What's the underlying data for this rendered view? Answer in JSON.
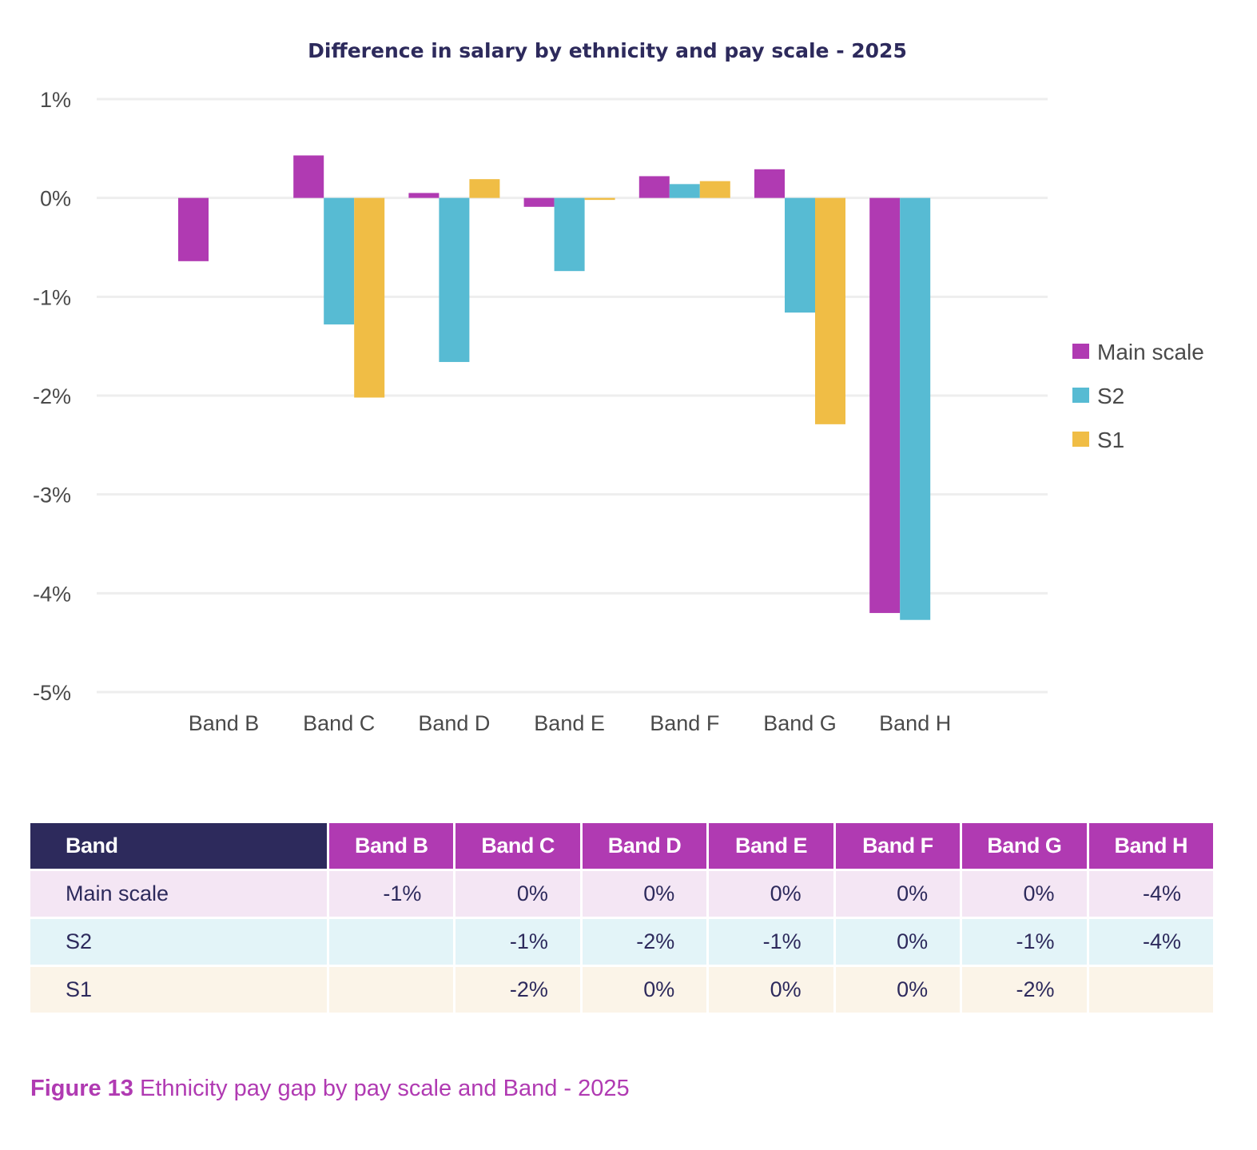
{
  "chart_data": {
    "type": "bar",
    "title": "Difference in salary by ethnicity and pay scale - 2025",
    "xlabel": "",
    "ylabel": "",
    "ylim": [
      -5,
      1
    ],
    "yticks": [
      1,
      0,
      -1,
      -2,
      -3,
      -4,
      -5
    ],
    "ytick_labels": [
      "1%",
      "0%",
      "-1%",
      "-2%",
      "-3%",
      "-4%",
      "-5%"
    ],
    "grid": true,
    "legend_position": "right",
    "categories": [
      "Band B",
      "Band C",
      "Band D",
      "Band E",
      "Band F",
      "Band G",
      "Band H"
    ],
    "series": [
      {
        "name": "Main scale",
        "color": "#b03ab2",
        "values": [
          -0.64,
          0.43,
          0.05,
          -0.09,
          0.22,
          0.29,
          -4.2
        ]
      },
      {
        "name": "S2",
        "color": "#57bbd3",
        "values": [
          null,
          -1.28,
          -1.66,
          -0.74,
          0.14,
          -1.16,
          -4.27
        ]
      },
      {
        "name": "S1",
        "color": "#f0bd45",
        "values": [
          null,
          -2.02,
          0.19,
          -0.02,
          0.17,
          -2.29,
          null
        ]
      }
    ]
  },
  "table": {
    "header_label": "Band",
    "columns": [
      "Band B",
      "Band C",
      "Band D",
      "Band E",
      "Band F",
      "Band G",
      "Band H"
    ],
    "rows": [
      {
        "label": "Main scale",
        "cells": [
          "-1%",
          "0%",
          "0%",
          "0%",
          "0%",
          "0%",
          "-4%"
        ]
      },
      {
        "label": "S2",
        "cells": [
          "",
          "-1%",
          "-2%",
          "-1%",
          "0%",
          "-1%",
          "-4%"
        ]
      },
      {
        "label": "S1",
        "cells": [
          "",
          "-2%",
          "0%",
          "0%",
          "0%",
          "-2%",
          ""
        ]
      }
    ]
  },
  "caption": {
    "figure_number": "Figure 13",
    "text": " Ethnicity pay gap by pay scale and Band - 2025"
  },
  "colors": {
    "accent": "#b03ab2",
    "navy": "#2d2a5c",
    "teal": "#57bbd3",
    "yellow": "#f0bd45"
  }
}
